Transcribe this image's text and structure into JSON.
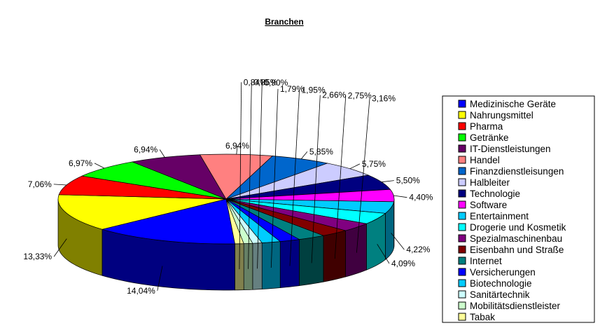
{
  "chart_data": {
    "type": "pie",
    "title": "Branchen",
    "legend_position": "right",
    "slices": [
      {
        "name": "Medizinische Geräte",
        "value": 14.04,
        "label": "14,04%",
        "color": "#0000FF"
      },
      {
        "name": "Nahrungsmittel",
        "value": 13.33,
        "label": "13,33%",
        "color": "#FFFF00"
      },
      {
        "name": "Pharma",
        "value": 7.06,
        "label": "7,06%",
        "color": "#FF0000"
      },
      {
        "name": "Getränke",
        "value": 6.97,
        "label": "6,97%",
        "color": "#00FF00"
      },
      {
        "name": "IT-Dienstleistungen",
        "value": 6.94,
        "label": "6,94%",
        "color": "#660066"
      },
      {
        "name": "Handel",
        "value": 6.94,
        "label": "6,94%",
        "color": "#FF8080"
      },
      {
        "name": "Finanzdienstleisungen",
        "value": 5.85,
        "label": "5,85%",
        "color": "#0066CC"
      },
      {
        "name": "Halbleiter",
        "value": 5.75,
        "label": "5,75%",
        "color": "#CCCCFF"
      },
      {
        "name": "Technologie",
        "value": 5.5,
        "label": "5,50%",
        "color": "#000080"
      },
      {
        "name": "Software",
        "value": 4.4,
        "label": "4,40%",
        "color": "#FF00FF"
      },
      {
        "name": "Entertainment",
        "value": 4.22,
        "label": "4,22%",
        "color": "#00CCFF"
      },
      {
        "name": "Drogerie und Kosmetik",
        "value": 4.09,
        "label": "4,09%",
        "color": "#00FFFF"
      },
      {
        "name": "Spezialmaschinenbau",
        "value": 3.16,
        "label": "3,16%",
        "color": "#800080"
      },
      {
        "name": "Eisenbahn und Straße",
        "value": 2.75,
        "label": "2,75%",
        "color": "#800000"
      },
      {
        "name": "Internet",
        "value": 2.66,
        "label": "2,66%",
        "color": "#008080"
      },
      {
        "name": "Versicherungen",
        "value": 1.95,
        "label": "1,95%",
        "color": "#0000FF"
      },
      {
        "name": "Biotechnologie",
        "value": 1.79,
        "label": "1,79%",
        "color": "#00CCFF"
      },
      {
        "name": "Sanitärtechnik",
        "value": 0.9,
        "label": "0,90%",
        "color": "#CCFFFF"
      },
      {
        "name": "Mobilitätsdienstleister",
        "value": 0.85,
        "label": "0,85%",
        "color": "#CCFFCC"
      },
      {
        "name": "Tabak",
        "value": 0.84,
        "label": "0,84%",
        "color": "#FFFF99"
      }
    ]
  }
}
